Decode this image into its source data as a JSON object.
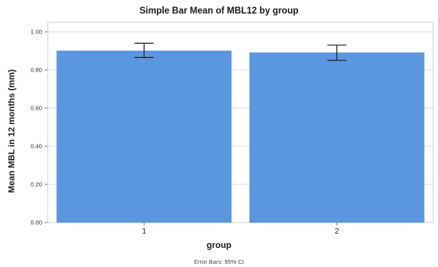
{
  "chart_data": {
    "type": "bar",
    "title": "Simple Bar Mean of MBL12 by group",
    "xlabel": "group",
    "ylabel": "Mean MBL in 12 months (mm)",
    "categories": [
      "1",
      "2"
    ],
    "values": [
      0.9,
      0.89
    ],
    "error_bars": [
      {
        "lower": 0.865,
        "upper": 0.94
      },
      {
        "lower": 0.85,
        "upper": 0.93
      }
    ],
    "ylim": [
      0,
      1.05
    ],
    "yticks": [
      "0.00",
      "0.20",
      "0.40",
      "0.60",
      "0.80",
      "1.00"
    ],
    "ytick_values": [
      0,
      0.2,
      0.4,
      0.6,
      0.8,
      1.0
    ],
    "grid": true,
    "bar_color": "#5b97e0",
    "footnote": "Error Bars: 95% CI"
  }
}
